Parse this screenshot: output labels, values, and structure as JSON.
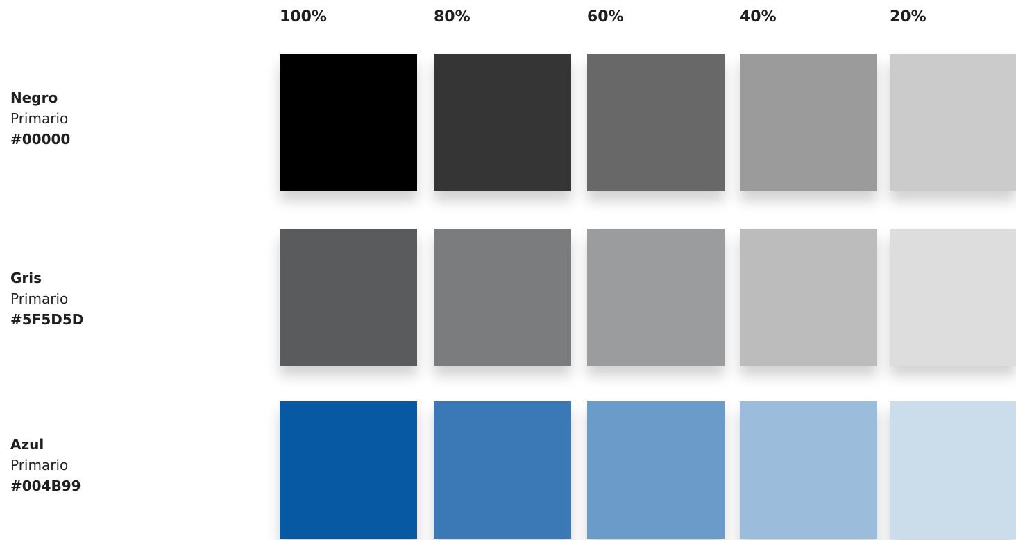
{
  "headers": [
    "100%",
    "80%",
    "60%",
    "40%",
    "20%"
  ],
  "rows": [
    {
      "name": "Negro",
      "role": "Primario",
      "hex": "#00000",
      "swatches": [
        "#000000",
        "#353535",
        "#686868",
        "#9b9b9b",
        "#cbcbcb"
      ]
    },
    {
      "name": "Gris",
      "role": "Primario",
      "hex": "#5F5D5D",
      "swatches": [
        "#5a5b5c",
        "#7b7c7e",
        "#9b9c9e",
        "#bcbcbc",
        "#dddddd"
      ]
    },
    {
      "name": "Azul",
      "role": "Primario",
      "hex": "#004B99",
      "swatches": [
        "#0659a2",
        "#3a78b6",
        "#6a9bc9",
        "#9cbcdb",
        "#cbdcea"
      ]
    }
  ]
}
